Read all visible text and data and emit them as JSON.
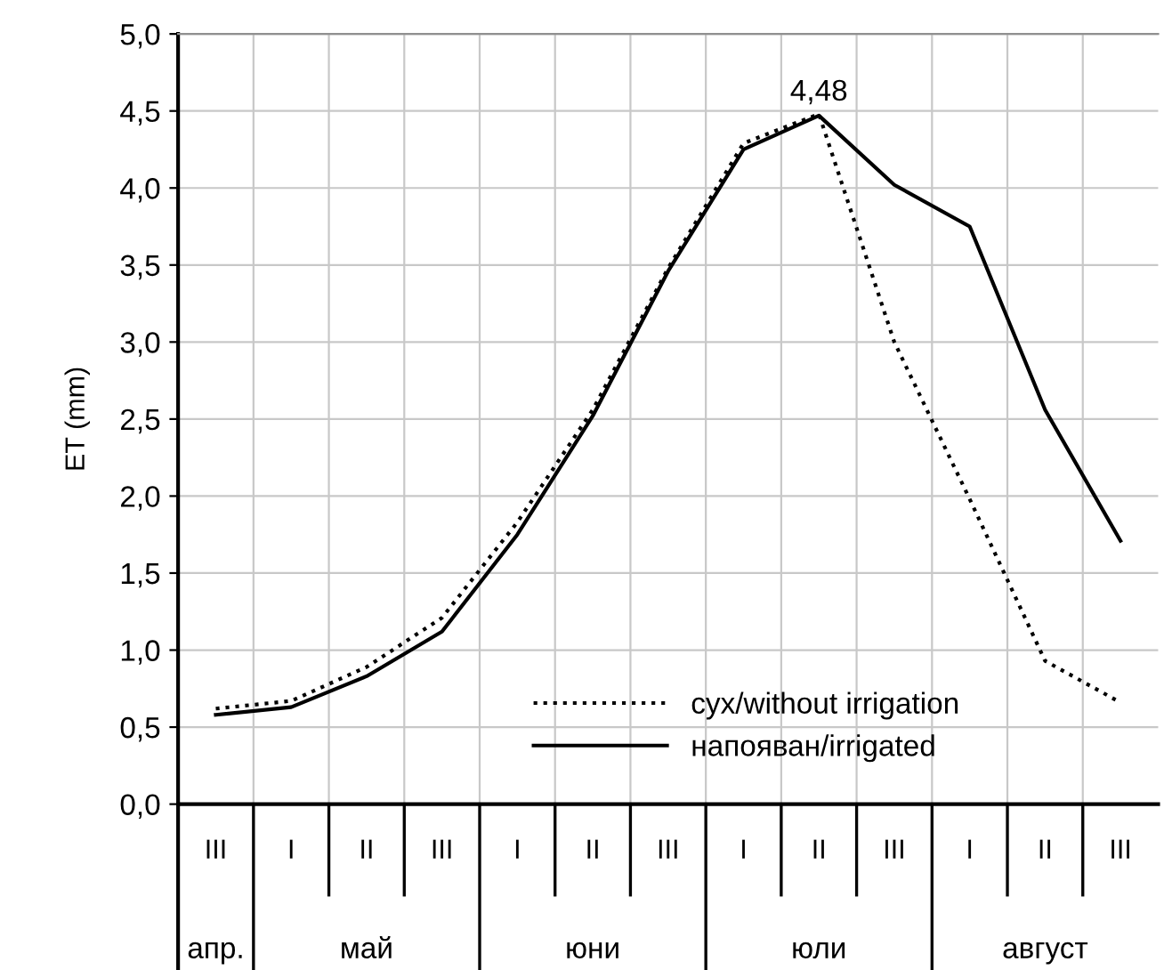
{
  "chart_data": {
    "type": "line",
    "ylabel": "ET (mm)",
    "categories": [
      "III",
      "I",
      "II",
      "III",
      "I",
      "II",
      "III",
      "I",
      "II",
      "III",
      "I",
      "II",
      "III"
    ],
    "series": [
      {
        "name": "сух/without irrigation",
        "color": "#000000",
        "line_style": "dotted",
        "values": [
          0.62,
          0.67,
          0.89,
          1.21,
          1.83,
          2.56,
          3.48,
          4.29,
          4.48,
          3.0,
          1.98,
          0.93,
          0.66
        ],
        "value_labels": [
          null,
          null,
          null,
          null,
          null,
          null,
          null,
          null,
          "4,48",
          null,
          null,
          null,
          null
        ]
      },
      {
        "name": "напояван/irrigated",
        "color": "#000000",
        "line_style": "solid",
        "values": [
          0.58,
          0.63,
          0.83,
          1.12,
          1.75,
          2.52,
          3.46,
          4.25,
          4.47,
          4.02,
          3.75,
          2.56,
          1.71
        ]
      }
    ],
    "annotations": [
      "апр.",
      "май",
      "юни",
      "юли",
      "август"
    ],
    "ylim": [
      0,
      5
    ],
    "yticks": [
      {
        "value": 0,
        "label": "0,0"
      },
      {
        "value": 0.5,
        "label": "0,5"
      },
      {
        "value": 1,
        "label": "1,0"
      },
      {
        "value": 1.5,
        "label": "1,5"
      },
      {
        "value": 2,
        "label": "2,0"
      },
      {
        "value": 2.5,
        "label": "2,5"
      },
      {
        "value": 3,
        "label": "3,0"
      },
      {
        "value": 3.5,
        "label": "3,5"
      },
      {
        "value": 4,
        "label": "4,0"
      },
      {
        "value": 4.5,
        "label": "4,5"
      },
      {
        "value": 5,
        "label": "5,0"
      }
    ],
    "grid": true,
    "legend": "bottom"
  }
}
